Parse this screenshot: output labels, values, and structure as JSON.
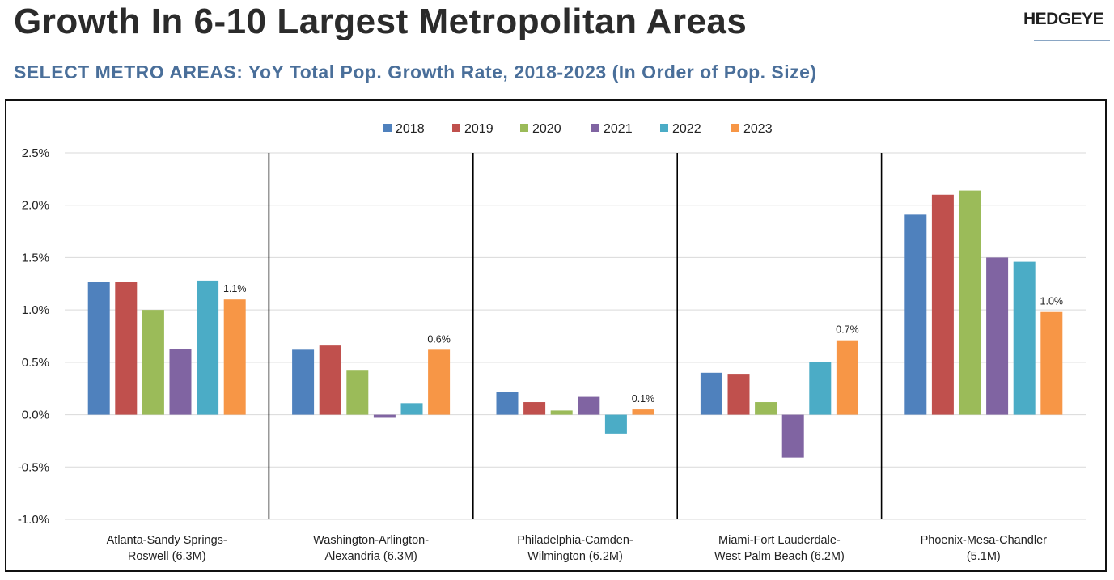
{
  "header": {
    "title": "Growth In 6-10 Largest Metropolitan Areas",
    "subtitle": "SELECT METRO AREAS: YoY Total Pop. Growth Rate, 2018-2023 (In Order of Pop. Size)",
    "brand": "HEDGEYE"
  },
  "chart_data": {
    "type": "bar",
    "title": "SELECT METRO AREAS: YoY Total Pop. Growth Rate, 2018-2023 (In Order of Pop. Size)",
    "categories": [
      [
        "Atlanta-Sandy Springs-",
        "Roswell (6.3M)"
      ],
      [
        "Washington-Arlington-",
        "Alexandria (6.3M)"
      ],
      [
        "Philadelphia-Camden-",
        "Wilmington (6.2M)"
      ],
      [
        "Miami-Fort Lauderdale-",
        "West Palm Beach (6.2M)"
      ],
      [
        "Phoenix-Mesa-Chandler",
        "(5.1M)"
      ]
    ],
    "series": [
      {
        "name": "2018",
        "color": "#4f81bd",
        "values": [
          1.27,
          0.62,
          0.22,
          0.4,
          1.91
        ]
      },
      {
        "name": "2019",
        "color": "#c0504d",
        "values": [
          1.27,
          0.66,
          0.12,
          0.39,
          2.1
        ]
      },
      {
        "name": "2020",
        "color": "#9bbb59",
        "values": [
          1.0,
          0.42,
          0.04,
          0.12,
          2.14
        ]
      },
      {
        "name": "2021",
        "color": "#8064a2",
        "values": [
          0.63,
          -0.03,
          0.17,
          -0.41,
          1.5
        ]
      },
      {
        "name": "2022",
        "color": "#4bacc6",
        "values": [
          1.28,
          0.11,
          -0.18,
          0.5,
          1.46
        ]
      },
      {
        "name": "2023",
        "color": "#f79646",
        "values": [
          1.1,
          0.62,
          0.05,
          0.71,
          0.98
        ]
      }
    ],
    "data_labels": {
      "series": "2023",
      "labels": [
        "1.1%",
        "0.6%",
        "0.1%",
        "0.7%",
        "1.0%"
      ]
    },
    "y_ticks": [
      "-1.0%",
      "-0.5%",
      "0.0%",
      "0.5%",
      "1.0%",
      "1.5%",
      "2.0%",
      "2.5%"
    ],
    "ylim": [
      -1.0,
      2.5
    ],
    "grid": true,
    "legend": "top-center"
  }
}
